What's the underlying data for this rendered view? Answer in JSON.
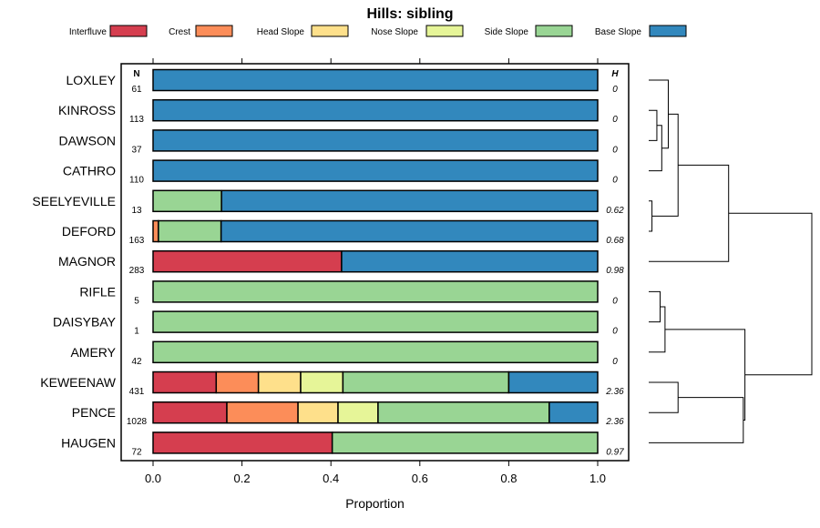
{
  "chart_data": {
    "type": "bar",
    "stacked": "horizontal-proportion",
    "title": "Hills: sibling",
    "xlabel": "Proportion",
    "ylabel": "",
    "xlim": [
      0,
      1
    ],
    "x_ticks": [
      "0.0",
      "0.2",
      "0.4",
      "0.6",
      "0.8",
      "1.0"
    ],
    "x_tick_values": [
      0,
      0.2,
      0.4,
      0.6,
      0.8,
      1.0
    ],
    "n_header": "N",
    "h_header": "H",
    "legend_position": "top",
    "series": [
      {
        "name": "Interfluve",
        "color": "#d53e4f"
      },
      {
        "name": "Crest",
        "color": "#fc8d59"
      },
      {
        "name": "Head Slope",
        "color": "#fee08b"
      },
      {
        "name": "Nose Slope",
        "color": "#e6f598"
      },
      {
        "name": "Side Slope",
        "color": "#99d594"
      },
      {
        "name": "Base Slope",
        "color": "#3288bd"
      }
    ],
    "categories": [
      "LOXLEY",
      "KINROSS",
      "DAWSON",
      "CATHRO",
      "SEELYEVILLE",
      "DEFORD",
      "MAGNOR",
      "RIFLE",
      "DAISYBAY",
      "AMERY",
      "KEWEENAW",
      "PENCE",
      "HAUGEN"
    ],
    "n": [
      "61",
      "113",
      "37",
      "110",
      "13",
      "163",
      "283",
      "5",
      "1",
      "42",
      "431",
      "1028",
      "72"
    ],
    "h": [
      "0",
      "0",
      "0",
      "0",
      "0.62",
      "0.68",
      "0.98",
      "0",
      "0",
      "0",
      "2.36",
      "2.36",
      "0.97"
    ],
    "values": [
      [
        0,
        0,
        0,
        0,
        0,
        1.0
      ],
      [
        0,
        0,
        0,
        0,
        0,
        1.0
      ],
      [
        0,
        0,
        0,
        0,
        0,
        1.0
      ],
      [
        0,
        0,
        0,
        0,
        0,
        1.0
      ],
      [
        0,
        0,
        0,
        0,
        0.154,
        0.846
      ],
      [
        0,
        0.012,
        0,
        0,
        0.141,
        0.847
      ],
      [
        0.424,
        0,
        0,
        0,
        0,
        0.576
      ],
      [
        0,
        0,
        0,
        0,
        1.0,
        0
      ],
      [
        0,
        0,
        0,
        0,
        1.0,
        0
      ],
      [
        0,
        0,
        0,
        0,
        1.0,
        0
      ],
      [
        0.142,
        0.095,
        0.095,
        0.095,
        0.373,
        0.2
      ],
      [
        0.166,
        0.16,
        0.09,
        0.09,
        0.385,
        0.109
      ],
      [
        0.403,
        0,
        0,
        0,
        0.597,
        0
      ]
    ],
    "dendrogram": {
      "leaf_order": [
        "LOXLEY",
        "KINROSS",
        "DAWSON",
        "CATHRO",
        "SEELYEVILLE",
        "DEFORD",
        "MAGNOR",
        "RIFLE",
        "DAISYBAY",
        "AMERY",
        "KEWEENAW",
        "PENCE",
        "HAUGEN"
      ],
      "merges": [
        {
          "a": 1,
          "b": 2,
          "height": 0.05
        },
        {
          "a": 3,
          "b": -1,
          "height": 0.08
        },
        {
          "a": 4,
          "b": 5,
          "height": 0.02
        },
        {
          "a": 0,
          "b": -2,
          "height": 0.12
        },
        {
          "a": -4,
          "b": -3,
          "height": 0.18
        },
        {
          "a": -5,
          "b": 6,
          "height": 0.49
        },
        {
          "a": 7,
          "b": 8,
          "height": 0.07
        },
        {
          "a": -7,
          "b": 9,
          "height": 0.1
        },
        {
          "a": 10,
          "b": 11,
          "height": 0.18
        },
        {
          "a": -9,
          "b": 12,
          "height": 0.58
        },
        {
          "a": -8,
          "b": -10,
          "height": 0.59
        },
        {
          "a": -6,
          "b": -11,
          "height": 1.0
        }
      ]
    }
  }
}
